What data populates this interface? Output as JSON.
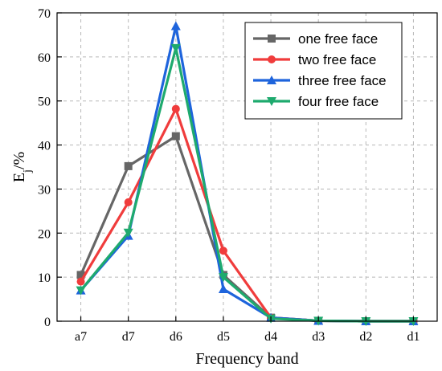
{
  "chart_data": {
    "type": "line",
    "title": "",
    "xlabel": "Frequency band",
    "ylabel_main": "E",
    "ylabel_sub": "j",
    "ylabel_suffix": "/%",
    "ylim": [
      0,
      70
    ],
    "yticks": [
      0,
      10,
      20,
      30,
      40,
      50,
      60,
      70
    ],
    "ytick_labels": [
      "0",
      "10",
      "20",
      "30",
      "40",
      "50",
      "60",
      "70"
    ],
    "categories": [
      "a7",
      "d7",
      "d6",
      "d5",
      "d4",
      "d3",
      "d2",
      "d1"
    ],
    "grid": true,
    "legend_position": "top-right",
    "series": [
      {
        "name": "one free face",
        "color": "#666666",
        "marker": "square",
        "values": [
          10.5,
          35.2,
          42.0,
          10.5,
          0.8,
          0.1,
          0.0,
          0.0
        ]
      },
      {
        "name": "two free face",
        "color": "#f03c3c",
        "marker": "circle",
        "values": [
          9.0,
          27.0,
          48.2,
          16.0,
          0.8,
          0.1,
          0.0,
          0.0
        ]
      },
      {
        "name": "three free face",
        "color": "#1e64dc",
        "marker": "triangle-up",
        "values": [
          7.0,
          19.4,
          67.0,
          7.3,
          0.8,
          0.1,
          0.0,
          0.0
        ]
      },
      {
        "name": "four free face",
        "color": "#1eaa6e",
        "marker": "triangle-down",
        "values": [
          7.0,
          20.1,
          62.0,
          10.0,
          0.6,
          0.1,
          0.0,
          0.0
        ]
      }
    ]
  }
}
